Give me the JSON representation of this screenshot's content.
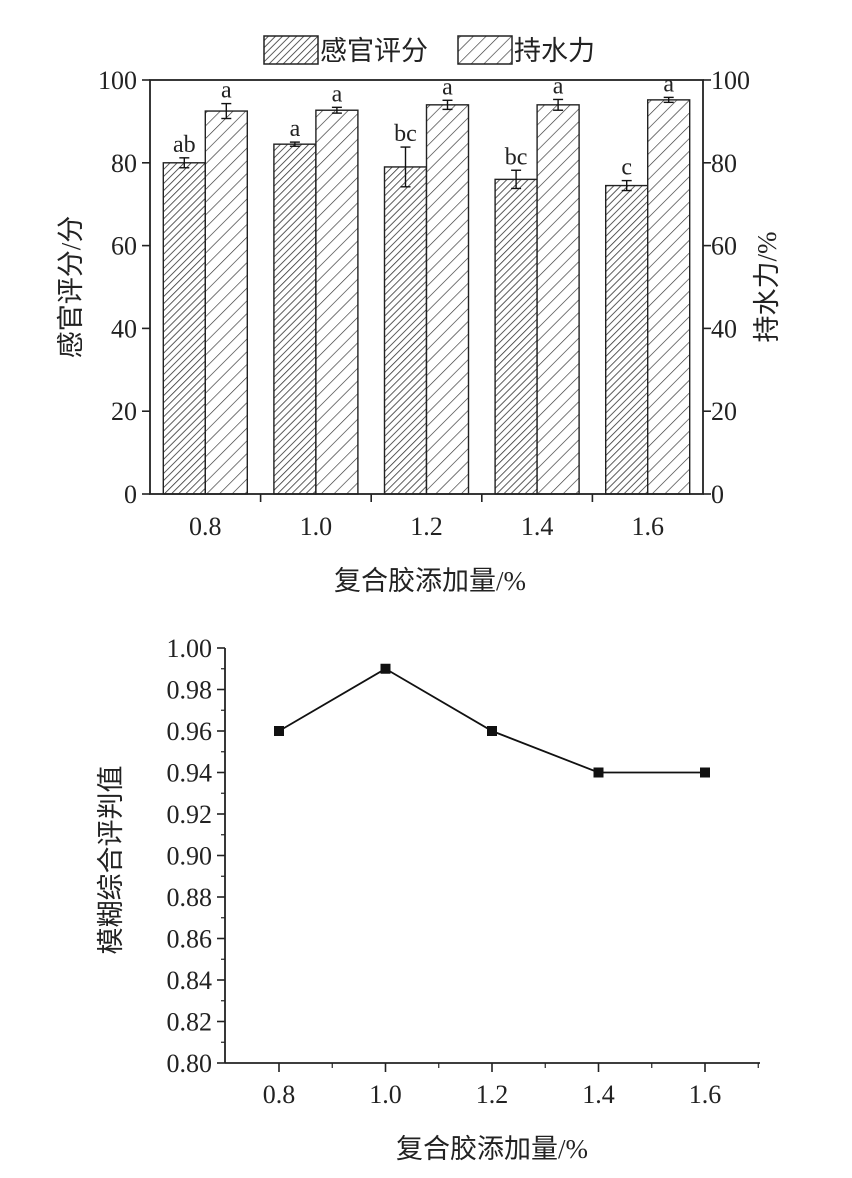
{
  "chart_data": [
    {
      "type": "bar",
      "categories": [
        "0.8",
        "1.0",
        "1.2",
        "1.4",
        "1.6"
      ],
      "xlabel": "复合胶添加量/%",
      "ylabel_left": "感官评分/分",
      "ylabel_right": "持水力/%",
      "ylim_left": [
        0,
        100
      ],
      "ylim_right": [
        0,
        100
      ],
      "yticks_left": [
        "0",
        "20",
        "40",
        "60",
        "80",
        "100"
      ],
      "yticks_right": [
        "0",
        "20",
        "40",
        "60",
        "80",
        "100"
      ],
      "legend_position": "top",
      "series": [
        {
          "name": "感官评分",
          "axis": "left",
          "pattern": "dense-hatch",
          "values": [
            80,
            84.5,
            79,
            76,
            74.5
          ],
          "errors": [
            1.2,
            0.5,
            4.8,
            2.2,
            1.2
          ],
          "labels": [
            "ab",
            "a",
            "bc",
            "bc",
            "c"
          ]
        },
        {
          "name": "持水力",
          "axis": "right",
          "pattern": "sparse-hatch",
          "values": [
            92.5,
            92.7,
            94,
            94,
            95.2
          ],
          "errors": [
            1.8,
            0.7,
            1.1,
            1.3,
            0.6
          ],
          "labels": [
            "a",
            "a",
            "a",
            "a",
            "a"
          ]
        }
      ]
    },
    {
      "type": "line",
      "x": [
        "0.8",
        "1.0",
        "1.2",
        "1.4",
        "1.6"
      ],
      "values": [
        0.96,
        0.99,
        0.96,
        0.94,
        0.94
      ],
      "xlabel": "复合胶添加量/%",
      "ylabel": "模糊综合评判值",
      "ylim": [
        0.8,
        1.0
      ],
      "yticks": [
        "0.80",
        "0.82",
        "0.84",
        "0.86",
        "0.88",
        "0.90",
        "0.92",
        "0.94",
        "0.96",
        "0.98",
        "1.00"
      ],
      "marker": "square"
    }
  ]
}
